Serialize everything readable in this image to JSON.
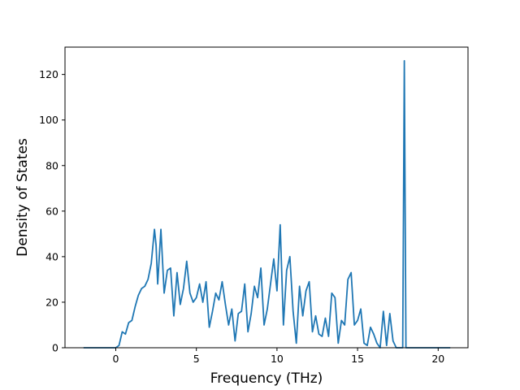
{
  "chart_data": {
    "type": "line",
    "title": "",
    "xlabel": "Frequency (THz)",
    "ylabel": "Density of States",
    "xlim": [
      -3.15,
      21.85
    ],
    "ylim": [
      0,
      132
    ],
    "xticks": [
      0,
      5,
      10,
      15,
      20
    ],
    "yticks": [
      0,
      20,
      40,
      60,
      80,
      100,
      120
    ],
    "grid": false,
    "line_color": "#1f77b4",
    "series": [
      {
        "name": "",
        "x": [
          -2.0,
          -1.0,
          0.0,
          0.2,
          0.4,
          0.6,
          0.8,
          1.0,
          1.2,
          1.4,
          1.6,
          1.8,
          2.0,
          2.2,
          2.4,
          2.5,
          2.6,
          2.8,
          3.0,
          3.2,
          3.4,
          3.6,
          3.8,
          4.0,
          4.2,
          4.4,
          4.6,
          4.8,
          5.0,
          5.2,
          5.4,
          5.6,
          5.8,
          6.0,
          6.2,
          6.4,
          6.6,
          6.8,
          7.0,
          7.2,
          7.4,
          7.6,
          7.8,
          8.0,
          8.2,
          8.4,
          8.6,
          8.8,
          9.0,
          9.2,
          9.4,
          9.6,
          9.8,
          10.0,
          10.2,
          10.4,
          10.6,
          10.8,
          11.0,
          11.2,
          11.4,
          11.6,
          11.8,
          12.0,
          12.2,
          12.4,
          12.6,
          12.8,
          13.0,
          13.2,
          13.4,
          13.6,
          13.8,
          14.0,
          14.2,
          14.4,
          14.6,
          14.8,
          15.0,
          15.2,
          15.4,
          15.6,
          15.8,
          16.0,
          16.2,
          16.4,
          16.6,
          16.8,
          17.0,
          17.2,
          17.4,
          17.6,
          17.8,
          17.9,
          18.0,
          18.1,
          18.2,
          18.4,
          19.0,
          20.0,
          20.75
        ],
        "y": [
          0,
          0,
          0,
          1,
          7,
          6,
          11,
          12,
          18,
          23,
          26,
          27,
          30,
          37,
          52,
          45,
          28,
          52,
          24,
          34,
          35,
          14,
          33,
          19,
          26,
          38,
          24,
          20,
          22,
          28,
          20,
          29,
          9,
          16,
          24,
          21,
          29,
          19,
          10,
          17,
          3,
          15,
          16,
          28,
          7,
          15,
          27,
          22,
          35,
          10,
          17,
          28,
          39,
          25,
          54,
          10,
          34,
          40,
          16,
          2,
          27,
          14,
          25,
          29,
          7,
          14,
          6,
          5,
          13,
          5,
          24,
          22,
          2,
          12,
          10,
          30,
          33,
          10,
          12,
          17,
          2,
          1,
          9,
          6,
          2,
          0,
          16,
          1,
          15,
          3,
          0,
          0,
          0,
          126,
          0,
          0,
          0,
          0,
          0,
          0,
          0
        ]
      }
    ]
  }
}
